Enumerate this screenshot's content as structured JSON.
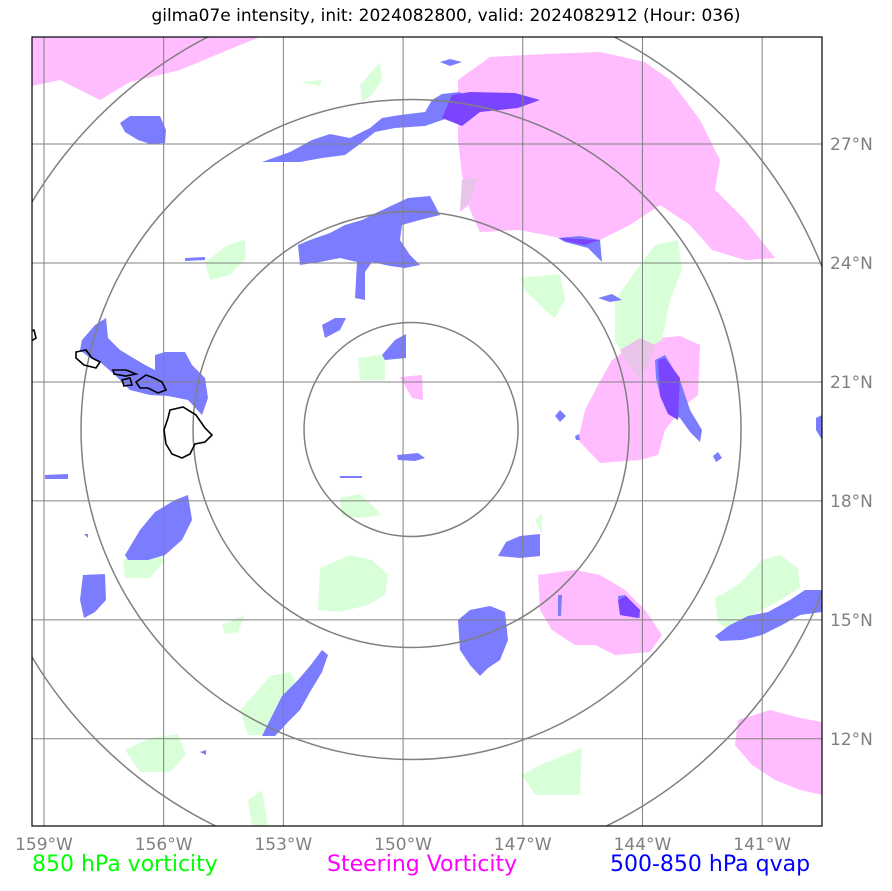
{
  "title": "gilma07e intensity, init: 2024082800, valid: 2024082912 (Hour: 036)",
  "map": {
    "lon_range": [
      -159.3,
      -139.5
    ],
    "lat_range": [
      9.8,
      29.7
    ],
    "lon_ticks": [
      {
        "value": -159,
        "label": "159°W"
      },
      {
        "value": -156,
        "label": "156°W"
      },
      {
        "value": -153,
        "label": "153°W"
      },
      {
        "value": -150,
        "label": "150°W"
      },
      {
        "value": -147,
        "label": "147°W"
      },
      {
        "value": -144,
        "label": "144°W"
      },
      {
        "value": -141,
        "label": "141°W"
      }
    ],
    "lat_ticks": [
      {
        "value": 12,
        "label": "12°N"
      },
      {
        "value": 15,
        "label": "15°N"
      },
      {
        "value": 18,
        "label": "18°N"
      },
      {
        "value": 21,
        "label": "21°N"
      },
      {
        "value": 24,
        "label": "24°N"
      },
      {
        "value": 27,
        "label": "27°N"
      }
    ],
    "range_ring_center": {
      "lon": -149.8,
      "lat": 19.8
    },
    "range_rings_count": 4
  },
  "legend": {
    "vort850": {
      "label": "850 hPa vorticity",
      "color": "#00ff00"
    },
    "steering": {
      "label": "Steering Vorticity",
      "color": "#ff00ff"
    },
    "qvap": {
      "label": "500-850 hPa qvap",
      "color": "#0000ff"
    }
  },
  "fill_colors": {
    "vort850": "#d9ffd9",
    "steering": "#ffbcff",
    "qvap": "#7c7cff",
    "overlap": "#7b45ff"
  }
}
